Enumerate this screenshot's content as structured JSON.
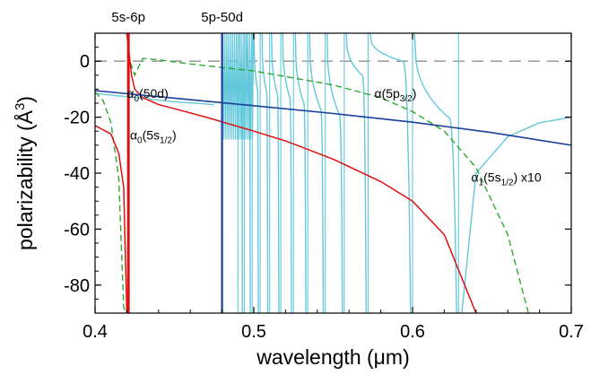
{
  "chart_data": {
    "type": "line",
    "xlabel": "wavelength (μm)",
    "ylabel": "polarizability (Å³)",
    "ylabel_parts": {
      "text": "polarizability (",
      "unit": "Å",
      "exp": "3",
      "close": ")"
    },
    "xlim": [
      0.4,
      0.7
    ],
    "ylim": [
      -90,
      10
    ],
    "x_ticks": [
      0.4,
      0.5,
      0.6,
      0.7
    ],
    "x_tick_labels": [
      "0.4",
      "0.5",
      "0.6",
      "0.7"
    ],
    "y_ticks": [
      0,
      -20,
      -40,
      -60,
      -80
    ],
    "y_tick_labels": [
      "0",
      "-20",
      "-40",
      "-60",
      "-80"
    ],
    "grid": false,
    "zero_line": {
      "y": 0,
      "style": "dashed",
      "color": "#a0a0a0"
    },
    "top_labels": [
      {
        "text": "5s-6p",
        "x": 0.421
      },
      {
        "text": "5p-50d",
        "x": 0.48
      }
    ],
    "annotations": [
      {
        "name": "alpha0-50d",
        "base": "α",
        "sub": "0",
        "rest": "(50d)",
        "sub2": "",
        "tail": "",
        "x": 0.42,
        "y": -13
      },
      {
        "name": "alpha0-5s",
        "base": "α",
        "sub": "0",
        "rest": "(5s",
        "sub2": "1/2",
        "tail": ")",
        "x": 0.422,
        "y": -28
      },
      {
        "name": "alpha-5p",
        "base": "α",
        "sub": "",
        "rest": "(5p",
        "sub2": "3/2",
        "tail": ")",
        "x": 0.576,
        "y": -13
      },
      {
        "name": "alpha1-5s",
        "base": "α",
        "sub": "1",
        "rest": "(5s",
        "sub2": "1/2",
        "tail": ") x10",
        "x": 0.637,
        "y": -43
      }
    ],
    "series": [
      {
        "id": "alpha0_50d",
        "color": "#1a3f9c",
        "style": "solid",
        "x": [
          0.4,
          0.45,
          0.5,
          0.55,
          0.6,
          0.65,
          0.7
        ],
        "y": [
          -10.5,
          -13.2,
          -15.9,
          -18.7,
          -21.8,
          -25.5,
          -30.0
        ]
      },
      {
        "id": "alpha0_5s",
        "color": "#e01010",
        "style": "solid",
        "x": [
          0.4,
          0.41,
          0.415,
          0.418,
          0.42,
          0.42,
          0.423,
          0.425,
          0.43,
          0.44,
          0.45,
          0.47,
          0.5,
          0.52,
          0.55,
          0.58,
          0.6,
          0.62,
          0.64
        ],
        "y": [
          -23,
          -26,
          -33,
          -45,
          -90,
          10,
          -5,
          -10,
          -13,
          -15.5,
          -17,
          -20,
          -25,
          -28.5,
          -35,
          -43,
          -50,
          -62,
          -90
        ]
      },
      {
        "id": "alpha1_5s_x10",
        "color": "#2fa82f",
        "style": "dashed",
        "x": [
          0.4,
          0.405,
          0.41,
          0.415,
          0.418,
          0.42,
          0.42,
          0.422,
          0.425,
          0.43,
          0.44,
          0.46,
          0.5,
          0.55,
          0.58,
          0.6,
          0.62,
          0.64,
          0.66,
          0.673
        ],
        "y": [
          -11,
          -14,
          -22,
          -42,
          -88,
          -90,
          10,
          0,
          -5,
          1,
          0.5,
          -1,
          -3.5,
          -8.5,
          -13,
          -18,
          -25,
          -38,
          -62,
          -90
        ]
      },
      {
        "id": "alpha_5p32",
        "color": "#62c8dc",
        "style": "solid",
        "background": {
          "x": [
            0.4,
            0.45,
            0.475
          ],
          "y": [
            -11.5,
            -14.5,
            -15.5
          ]
        },
        "dense_region": {
          "x_start": 0.48,
          "x_end": 0.5,
          "y_low": -28,
          "y_high": 10
        },
        "resonances": [
          0.482,
          0.484,
          0.486,
          0.488,
          0.49,
          0.494,
          0.499,
          0.504,
          0.51,
          0.517,
          0.525,
          0.534,
          0.545,
          0.557,
          0.572,
          0.6,
          0.629
        ],
        "tails": {
          "0.49": -6,
          "0.494": -8,
          "0.499": -10,
          "0.504": -11,
          "0.51": -12,
          "0.517": -13,
          "0.525": -15,
          "0.534": -17,
          "0.545": -19,
          "0.557": -5,
          "0.572": 0,
          "0.6": -20,
          "0.629": 0
        },
        "final_tail": {
          "x": [
            0.631,
            0.64,
            0.66,
            0.68,
            0.7
          ],
          "y": [
            -90,
            -40,
            -27,
            -22,
            -20
          ]
        }
      }
    ]
  }
}
